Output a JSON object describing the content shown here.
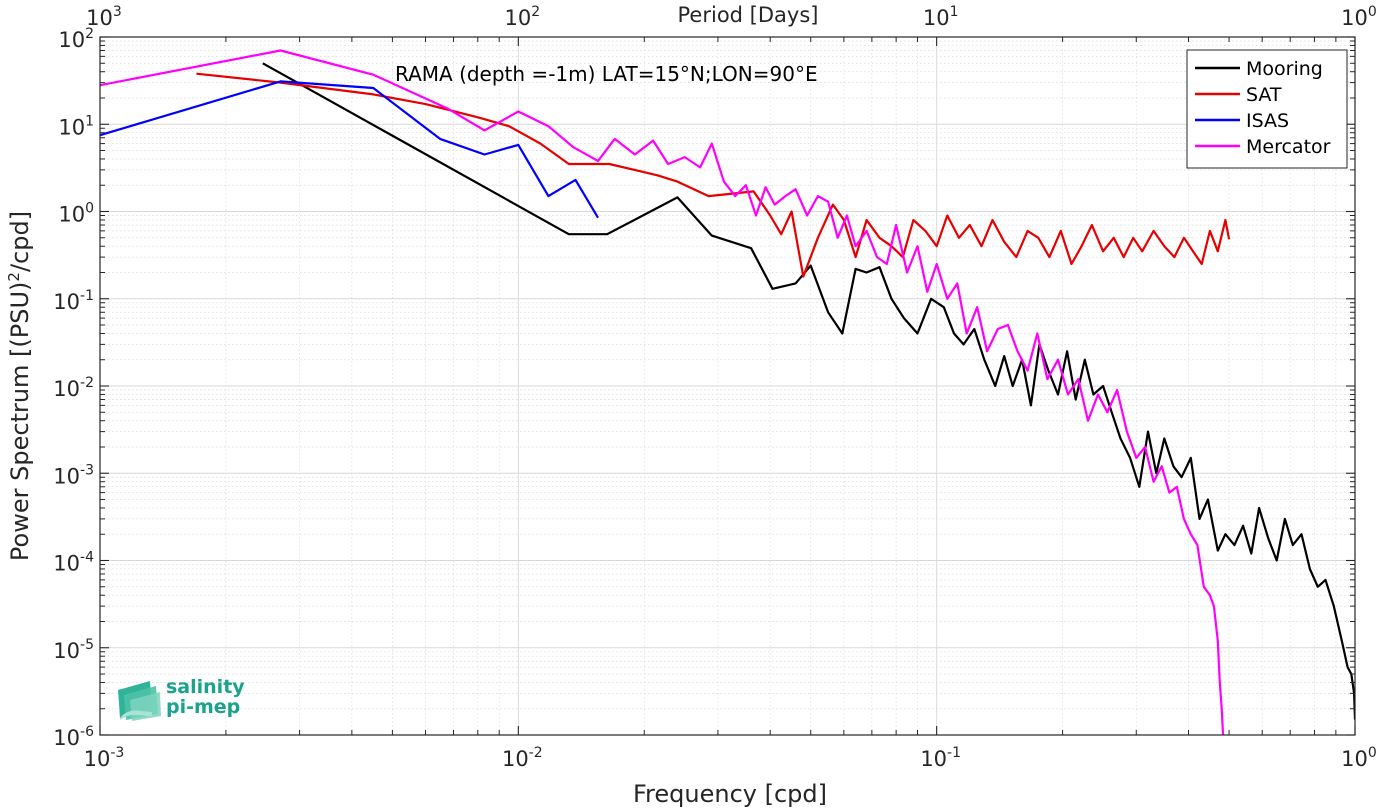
{
  "chart_data": {
    "type": "line",
    "title": "RAMA (depth =-1m) LAT=15°N;LON=90°E",
    "xlabel": "Frequency [cpd]",
    "ylabel_parts": {
      "before": "Power Spectrum [(PSU)",
      "exp": "2",
      "after": "/cpd]"
    },
    "top_xlabel": "Period [Days]",
    "x_scale": "log",
    "y_scale": "log",
    "xlim": [
      0.001,
      1
    ],
    "ylim": [
      1e-06,
      100
    ],
    "grid": true,
    "minor_grid": true,
    "legend_position": "top-right",
    "x_ticks": [
      {
        "value": 0.001,
        "base": "10",
        "exp": "-3"
      },
      {
        "value": 0.01,
        "base": "10",
        "exp": "-2"
      },
      {
        "value": 0.1,
        "base": "10",
        "exp": "-1"
      },
      {
        "value": 1,
        "base": "10",
        "exp": "0"
      }
    ],
    "top_ticks": [
      {
        "value": 0.001,
        "base": "10",
        "exp": "3"
      },
      {
        "value": 0.01,
        "base": "10",
        "exp": "2"
      },
      {
        "value": 0.1,
        "base": "10",
        "exp": "1"
      },
      {
        "value": 1,
        "base": "10",
        "exp": "0"
      }
    ],
    "y_ticks": [
      {
        "value": 100,
        "base": "10",
        "exp": "2"
      },
      {
        "value": 10,
        "base": "10",
        "exp": "1"
      },
      {
        "value": 1,
        "base": "10",
        "exp": "0"
      },
      {
        "value": 0.1,
        "base": "10",
        "exp": "-1"
      },
      {
        "value": 0.01,
        "base": "10",
        "exp": "-2"
      },
      {
        "value": 0.001,
        "base": "10",
        "exp": "-3"
      },
      {
        "value": 0.0001,
        "base": "10",
        "exp": "-4"
      },
      {
        "value": 1e-05,
        "base": "10",
        "exp": "-5"
      },
      {
        "value": 1e-06,
        "base": "10",
        "exp": "-6"
      }
    ],
    "series": [
      {
        "name": "Mooring",
        "color": "#000000",
        "x": [
          0.00245,
          0.0132,
          0.0163,
          0.024,
          0.029,
          0.036,
          0.0405,
          0.046,
          0.05,
          0.055,
          0.0595,
          0.064,
          0.068,
          0.073,
          0.078,
          0.0835,
          0.09,
          0.097,
          0.104,
          0.11,
          0.116,
          0.123,
          0.13,
          0.138,
          0.145,
          0.152,
          0.16,
          0.168,
          0.176,
          0.185,
          0.195,
          0.205,
          0.215,
          0.226,
          0.237,
          0.25,
          0.262,
          0.275,
          0.29,
          0.305,
          0.32,
          0.335,
          0.35,
          0.368,
          0.385,
          0.405,
          0.425,
          0.445,
          0.47,
          0.49,
          0.515,
          0.54,
          0.565,
          0.59,
          0.62,
          0.65,
          0.68,
          0.71,
          0.745,
          0.78,
          0.815,
          0.85,
          0.89,
          0.93,
          0.96,
          0.98,
          0.995,
          1.0
        ],
        "y": [
          50,
          0.55,
          0.55,
          1.45,
          0.53,
          0.38,
          0.13,
          0.15,
          0.24,
          0.07,
          0.04,
          0.22,
          0.2,
          0.23,
          0.1,
          0.06,
          0.04,
          0.1,
          0.08,
          0.04,
          0.03,
          0.045,
          0.02,
          0.01,
          0.022,
          0.01,
          0.02,
          0.006,
          0.03,
          0.015,
          0.008,
          0.025,
          0.007,
          0.02,
          0.008,
          0.01,
          0.005,
          0.0025,
          0.0015,
          0.0007,
          0.003,
          0.001,
          0.0025,
          0.0012,
          0.0009,
          0.0015,
          0.0003,
          0.0005,
          0.00013,
          0.0002,
          0.00015,
          0.00025,
          0.00012,
          0.0004,
          0.00018,
          0.0001,
          0.0003,
          0.00015,
          0.0002,
          8e-05,
          5e-05,
          6e-05,
          3e-05,
          1.2e-05,
          6e-06,
          5e-06,
          3e-06,
          1.5e-06
        ]
      },
      {
        "name": "SAT",
        "color": "#e60000",
        "x": [
          0.0017,
          0.0027,
          0.0045,
          0.006,
          0.008,
          0.0095,
          0.0113,
          0.0132,
          0.0165,
          0.0215,
          0.024,
          0.0285,
          0.0365,
          0.04,
          0.0425,
          0.045,
          0.048,
          0.052,
          0.0565,
          0.06,
          0.064,
          0.068,
          0.073,
          0.078,
          0.083,
          0.088,
          0.094,
          0.1,
          0.106,
          0.113,
          0.12,
          0.128,
          0.136,
          0.145,
          0.155,
          0.165,
          0.175,
          0.186,
          0.198,
          0.21,
          0.222,
          0.235,
          0.25,
          0.265,
          0.28,
          0.295,
          0.31,
          0.33,
          0.35,
          0.37,
          0.39,
          0.41,
          0.43,
          0.45,
          0.47,
          0.49,
          0.5
        ],
        "y": [
          38,
          30,
          22,
          17,
          12,
          9.5,
          6,
          3.5,
          3.5,
          2.6,
          2.2,
          1.5,
          1.7,
          0.9,
          0.55,
          1.0,
          0.18,
          0.5,
          1.2,
          0.8,
          0.3,
          0.8,
          0.5,
          0.4,
          0.3,
          0.8,
          0.6,
          0.4,
          0.9,
          0.5,
          0.7,
          0.4,
          0.8,
          0.45,
          0.3,
          0.6,
          0.5,
          0.3,
          0.6,
          0.25,
          0.4,
          0.7,
          0.35,
          0.5,
          0.3,
          0.5,
          0.35,
          0.6,
          0.4,
          0.3,
          0.5,
          0.35,
          0.25,
          0.6,
          0.35,
          0.8,
          0.48
        ]
      },
      {
        "name": "ISAS",
        "color": "#0000ff",
        "x": [
          0.001,
          0.0027,
          0.0045,
          0.0065,
          0.0083,
          0.01,
          0.0118,
          0.0137,
          0.0155
        ],
        "y": [
          7.5,
          31,
          26,
          6.8,
          4.5,
          5.8,
          1.5,
          2.3,
          0.85
        ]
      },
      {
        "name": "Mercator",
        "color": "#ff00ff",
        "x": [
          0.001,
          0.0027,
          0.0045,
          0.0068,
          0.0083,
          0.01,
          0.0118,
          0.0135,
          0.0155,
          0.017,
          0.019,
          0.021,
          0.0228,
          0.025,
          0.0272,
          0.029,
          0.031,
          0.033,
          0.035,
          0.037,
          0.039,
          0.041,
          0.0435,
          0.046,
          0.049,
          0.052,
          0.055,
          0.058,
          0.061,
          0.064,
          0.068,
          0.072,
          0.076,
          0.08,
          0.085,
          0.09,
          0.095,
          0.1,
          0.106,
          0.112,
          0.118,
          0.125,
          0.132,
          0.14,
          0.148,
          0.156,
          0.165,
          0.174,
          0.184,
          0.195,
          0.206,
          0.218,
          0.23,
          0.243,
          0.256,
          0.27,
          0.285,
          0.3,
          0.315,
          0.33,
          0.345,
          0.36,
          0.375,
          0.39,
          0.405,
          0.42,
          0.435,
          0.45,
          0.46,
          0.47,
          0.475,
          0.48,
          0.485
        ],
        "y": [
          28,
          70,
          37,
          15,
          8.5,
          14,
          9.5,
          5.5,
          3.8,
          6.8,
          4.5,
          6.5,
          3.5,
          4.2,
          3.2,
          6,
          2.2,
          1.5,
          2.0,
          0.9,
          1.9,
          1.2,
          1.5,
          1.8,
          0.9,
          1.5,
          1.3,
          0.5,
          0.9,
          0.4,
          0.6,
          0.3,
          0.25,
          0.7,
          0.2,
          0.4,
          0.12,
          0.25,
          0.1,
          0.15,
          0.04,
          0.08,
          0.025,
          0.045,
          0.05,
          0.025,
          0.015,
          0.04,
          0.012,
          0.02,
          0.008,
          0.012,
          0.004,
          0.008,
          0.005,
          0.009,
          0.003,
          0.0015,
          0.002,
          0.0008,
          0.0012,
          0.0006,
          0.0007,
          0.0003,
          0.0002,
          0.00015,
          5e-05,
          4e-05,
          3e-05,
          1.2e-05,
          4e-06,
          2e-06,
          8e-07
        ]
      }
    ]
  },
  "logo": {
    "line1": "salinity",
    "line2": "pi-mep"
  },
  "colors": {
    "grid": "#d9d9d9",
    "axes": "#262626",
    "logo_teal": "#1aa38c"
  }
}
